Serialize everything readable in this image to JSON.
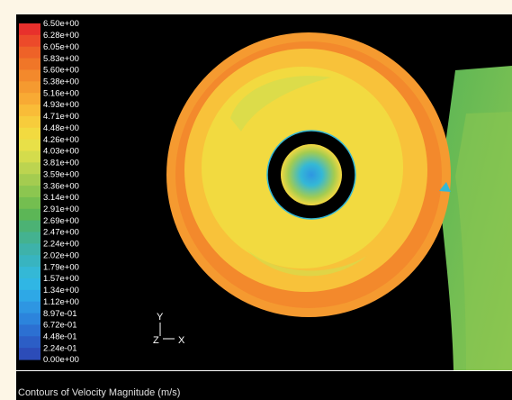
{
  "colorbar": {
    "labels": [
      "6.50e+00",
      "6.28e+00",
      "6.05e+00",
      "5.83e+00",
      "5.60e+00",
      "5.38e+00",
      "5.16e+00",
      "4.93e+00",
      "4.71e+00",
      "4.48e+00",
      "4.26e+00",
      "4.03e+00",
      "3.81e+00",
      "3.59e+00",
      "3.36e+00",
      "3.14e+00",
      "2.91e+00",
      "2.69e+00",
      "2.47e+00",
      "2.24e+00",
      "2.02e+00",
      "1.79e+00",
      "1.57e+00",
      "1.34e+00",
      "1.12e+00",
      "8.97e-01",
      "6.72e-01",
      "4.48e-01",
      "2.24e-01",
      "0.00e+00"
    ],
    "colors": [
      "#e8302c",
      "#ec4a2a",
      "#ee6228",
      "#f07628",
      "#f3892c",
      "#f59a30",
      "#f8aa34",
      "#f9bc38",
      "#f7cc3c",
      "#f2da40",
      "#e8e048",
      "#d4dc4c",
      "#bcd450",
      "#a4cc50",
      "#8cc650",
      "#74be50",
      "#5cb656",
      "#4cb274",
      "#44b290",
      "#3eb2aa",
      "#38b4c0",
      "#34b8d6",
      "#30b6e4",
      "#2ea8e6",
      "#2e96e2",
      "#2c84dc",
      "#2c70d2",
      "#2c5ec6",
      "#2c4cb8"
    ]
  },
  "axes": {
    "y_label": "Y",
    "z_label": "Z",
    "x_label": "X"
  },
  "caption": "Contours of Velocity Magnitude (m/s)",
  "field_colors": {
    "outer_edge": "#f59a30",
    "outer_band": "#f3892c",
    "mid_band": "#f8c23a",
    "inner_band": "#f2da40",
    "green_patch": "#d6dc4c",
    "hub_outer": "#f4d842",
    "hub_mid": "#a4cc50",
    "hub_core": "#34b8d6",
    "hub_center": "#2e96e2",
    "outlet_top": "#5cb656",
    "outlet_mid": "#8cc650"
  }
}
